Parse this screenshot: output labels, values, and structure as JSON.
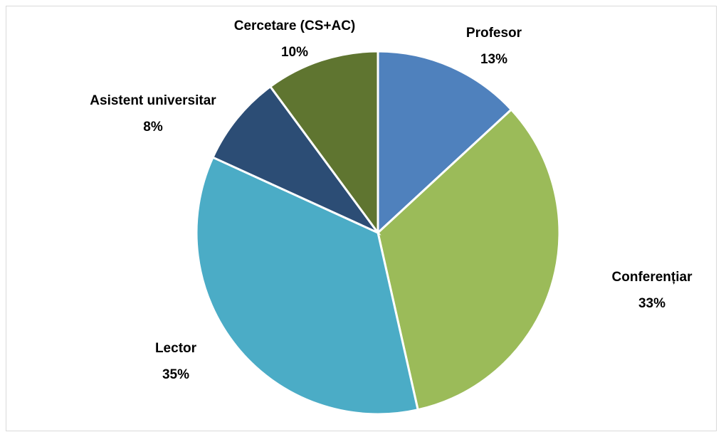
{
  "chart_data": {
    "type": "pie",
    "categories": [
      "Profesor",
      "Conferențiar",
      "Lector",
      "Asistent universitar",
      "Cercetare (CS+AC)"
    ],
    "values": [
      13,
      33,
      35,
      8,
      10
    ],
    "value_labels": [
      "13%",
      "33%",
      "35%",
      "8%",
      "10%"
    ],
    "colors": [
      "#4f81bd",
      "#9bbb59",
      "#4bacc6",
      "#2c4d75",
      "#5f7530"
    ]
  }
}
